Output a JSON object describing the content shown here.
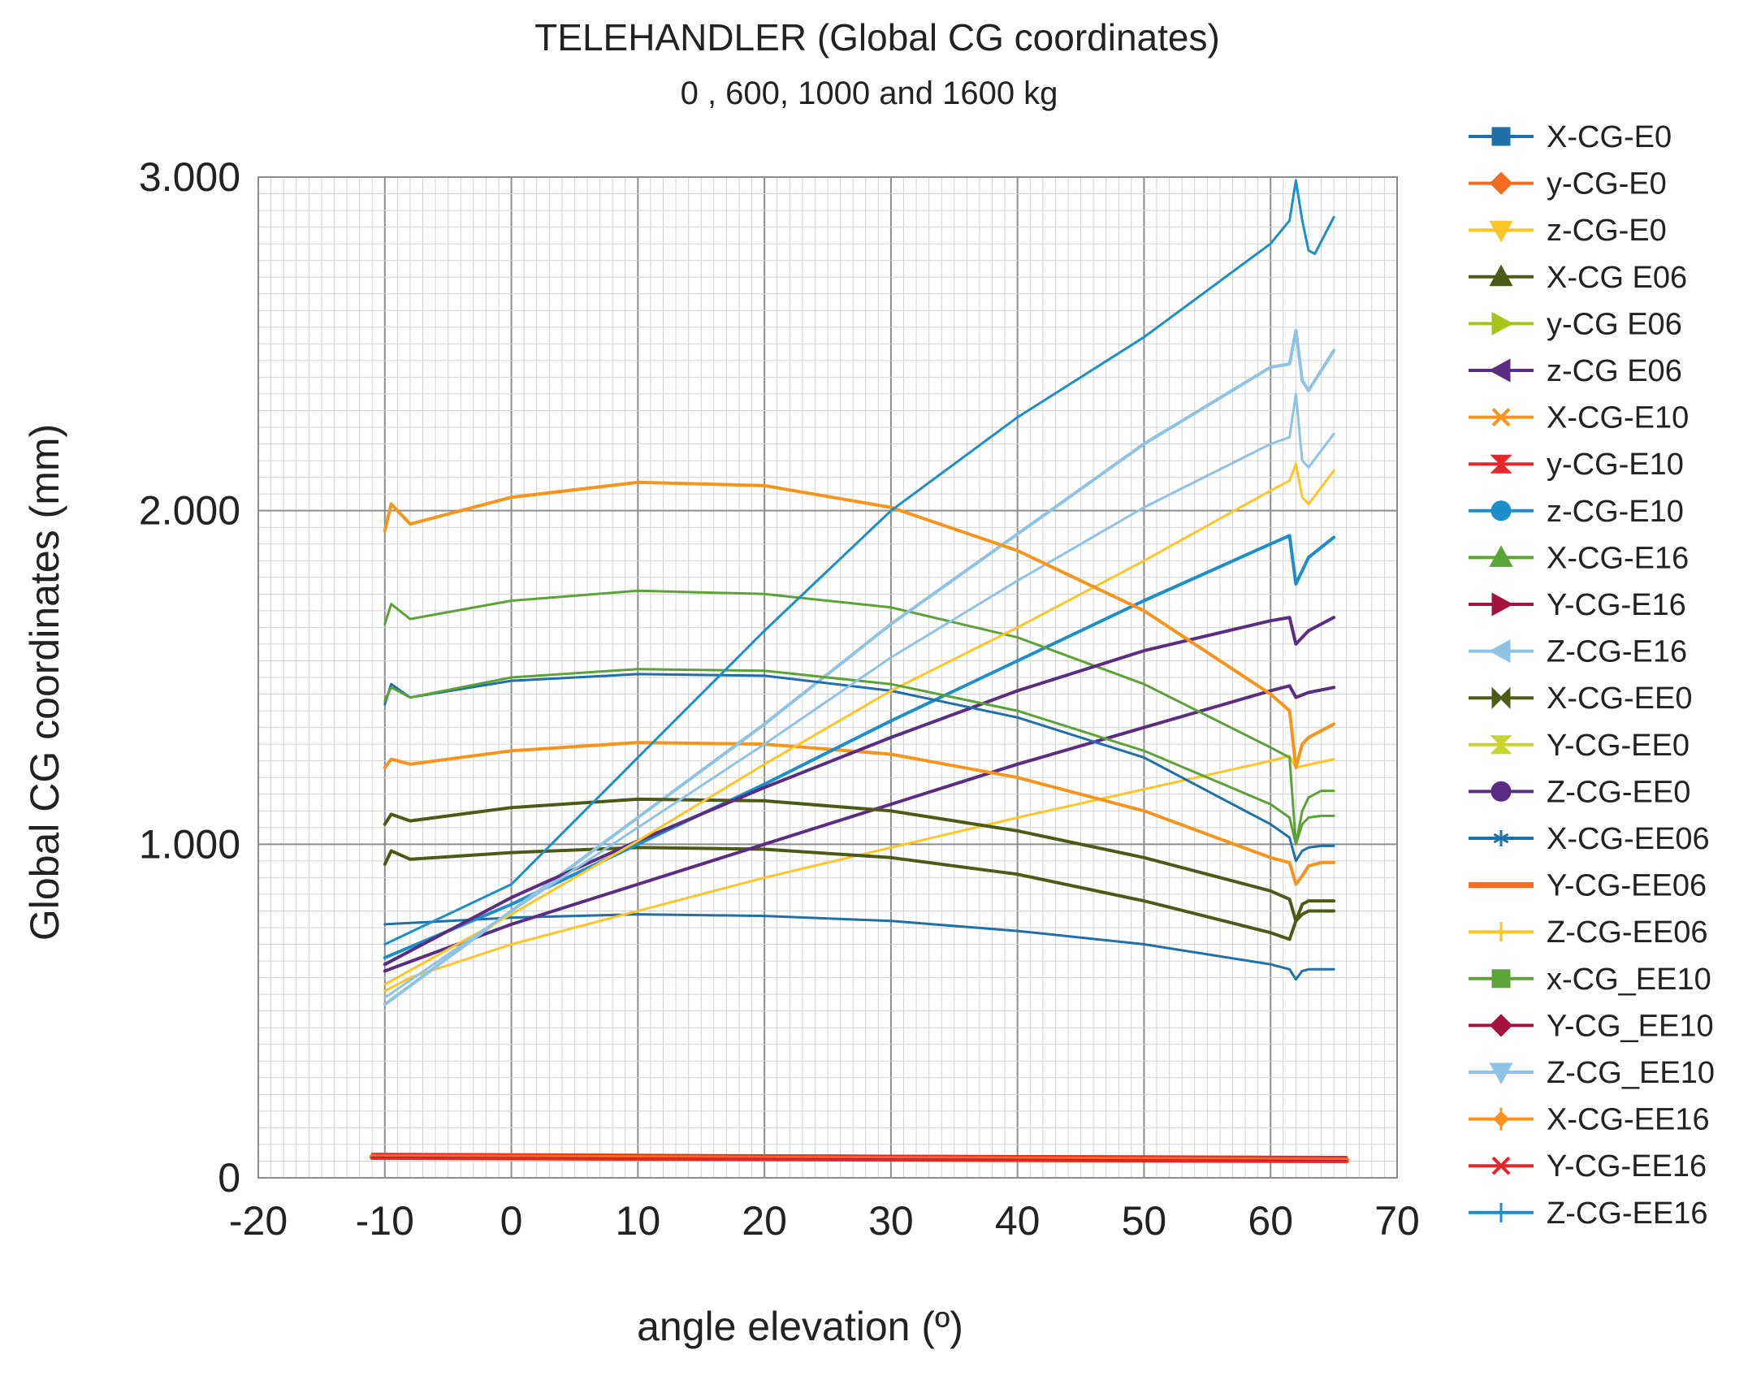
{
  "chart_data": {
    "type": "line",
    "title": "TELEHANDLER (Global CG coordinates)",
    "subtitle": "0 , 600, 1000 and 1600 kg",
    "xlabel": "angle elevation (º)",
    "ylabel": "Global CG coordinates (mm)",
    "xlim": [
      -20,
      70
    ],
    "ylim": [
      0,
      3000
    ],
    "x_ticks": [
      "-20",
      "-10",
      "0",
      "10",
      "20",
      "30",
      "40",
      "50",
      "60",
      "70"
    ],
    "y_ticks": [
      "0",
      "1.000",
      "2.000",
      "3.000"
    ],
    "grid": true,
    "legend_position": "right",
    "series": [
      {
        "name": "X-CG-E0",
        "color": "#1f6fa8",
        "marker": "square",
        "width": 3,
        "points": [
          [
            -10,
            760
          ],
          [
            0,
            780
          ],
          [
            10,
            790
          ],
          [
            20,
            785
          ],
          [
            30,
            770
          ],
          [
            40,
            740
          ],
          [
            50,
            700
          ],
          [
            60,
            640
          ],
          [
            61.5,
            625
          ],
          [
            62,
            595
          ],
          [
            62.5,
            620
          ],
          [
            63,
            625
          ],
          [
            65,
            625
          ]
        ]
      },
      {
        "name": "y-CG-E0",
        "color": "#f26b21",
        "marker": "diamond",
        "width": 3,
        "points": [
          [
            -11,
            72
          ],
          [
            66,
            60
          ]
        ]
      },
      {
        "name": "z-CG-E0",
        "color": "#ffc425",
        "marker": "triangle-down",
        "width": 3,
        "points": [
          [
            -10,
            560
          ],
          [
            -8,
            600
          ],
          [
            0,
            700
          ],
          [
            20,
            900
          ],
          [
            40,
            1080
          ],
          [
            60,
            1250
          ],
          [
            61.5,
            1265
          ],
          [
            62,
            1230
          ],
          [
            65,
            1255
          ]
        ]
      },
      {
        "name": "X-CG E06",
        "color": "#4b5b16",
        "marker": "triangle-up",
        "width": 4,
        "points": [
          [
            -10,
            940
          ],
          [
            -9.5,
            980
          ],
          [
            -8,
            955
          ],
          [
            0,
            975
          ],
          [
            10,
            990
          ],
          [
            20,
            985
          ],
          [
            30,
            960
          ],
          [
            40,
            910
          ],
          [
            50,
            830
          ],
          [
            60,
            735
          ],
          [
            61.5,
            715
          ],
          [
            62,
            770
          ],
          [
            62.5,
            790
          ],
          [
            63,
            800
          ],
          [
            64,
            800
          ],
          [
            65,
            800
          ]
        ]
      },
      {
        "name": "y-CG E06",
        "color": "#a8c418",
        "marker": "triangle-right",
        "width": 3,
        "points": [
          [
            -11,
            68
          ],
          [
            66,
            58
          ]
        ]
      },
      {
        "name": "z-CG E06",
        "color": "#5a2d82",
        "marker": "triangle-left",
        "width": 4,
        "points": [
          [
            -10,
            620
          ],
          [
            0,
            760
          ],
          [
            10,
            880
          ],
          [
            20,
            1000
          ],
          [
            30,
            1120
          ],
          [
            40,
            1240
          ],
          [
            50,
            1350
          ],
          [
            60,
            1460
          ],
          [
            61.5,
            1475
          ],
          [
            62,
            1440
          ],
          [
            63,
            1455
          ],
          [
            65,
            1470
          ]
        ]
      },
      {
        "name": "X-CG-E10",
        "color": "#f7941d",
        "marker": "x-cross",
        "width": 4,
        "points": [
          [
            -10,
            1230
          ],
          [
            -9.5,
            1255
          ],
          [
            -8,
            1240
          ],
          [
            0,
            1280
          ],
          [
            10,
            1305
          ],
          [
            20,
            1300
          ],
          [
            30,
            1270
          ],
          [
            40,
            1200
          ],
          [
            50,
            1100
          ],
          [
            60,
            960
          ],
          [
            61.5,
            945
          ],
          [
            62,
            880
          ],
          [
            62.5,
            905
          ],
          [
            63,
            935
          ],
          [
            64,
            945
          ],
          [
            65,
            945
          ]
        ]
      },
      {
        "name": "y-CG-E10",
        "color": "#e8262a",
        "marker": "hourglass",
        "width": 3,
        "points": [
          [
            -11,
            70
          ],
          [
            66,
            62
          ]
        ]
      },
      {
        "name": "z-CG-E10",
        "color": "#1b8fc9",
        "marker": "circle",
        "width": 4,
        "points": [
          [
            -10,
            660
          ],
          [
            0,
            820
          ],
          [
            10,
            1000
          ],
          [
            20,
            1180
          ],
          [
            30,
            1370
          ],
          [
            40,
            1550
          ],
          [
            50,
            1730
          ],
          [
            60,
            1900
          ],
          [
            61.5,
            1925
          ],
          [
            62,
            1780
          ],
          [
            63,
            1860
          ],
          [
            65,
            1920
          ]
        ]
      },
      {
        "name": "X-CG-E16",
        "color": "#5ba336",
        "marker": "triangle-up",
        "width": 3,
        "points": [
          [
            -10,
            1660
          ],
          [
            -9.5,
            1720
          ],
          [
            -8,
            1675
          ],
          [
            0,
            1730
          ],
          [
            10,
            1760
          ],
          [
            20,
            1750
          ],
          [
            30,
            1710
          ],
          [
            40,
            1620
          ],
          [
            50,
            1480
          ],
          [
            60,
            1290
          ],
          [
            61.5,
            1260
          ],
          [
            62,
            1000
          ],
          [
            62.5,
            1100
          ],
          [
            63,
            1140
          ],
          [
            64,
            1160
          ],
          [
            65,
            1160
          ]
        ]
      },
      {
        "name": "Y-CG-E16",
        "color": "#a4123f",
        "marker": "triangle-right",
        "width": 3,
        "points": [
          [
            -11,
            66
          ],
          [
            66,
            56
          ]
        ]
      },
      {
        "name": "Z-CG-E16",
        "color": "#8ec3e6",
        "marker": "triangle-left",
        "width": 4,
        "points": [
          [
            -10,
            520
          ],
          [
            0,
            800
          ],
          [
            10,
            1080
          ],
          [
            20,
            1360
          ],
          [
            30,
            1660
          ],
          [
            40,
            1930
          ],
          [
            50,
            2200
          ],
          [
            60,
            2430
          ],
          [
            61.5,
            2440
          ],
          [
            62,
            2540
          ],
          [
            62.5,
            2390
          ],
          [
            63,
            2360
          ],
          [
            65,
            2480
          ]
        ]
      },
      {
        "name": "X-CG-EE0",
        "color": "#4b5b16",
        "marker": "bowtie",
        "width": 4,
        "points": [
          [
            -10,
            1060
          ],
          [
            -9.5,
            1090
          ],
          [
            -8,
            1070
          ],
          [
            0,
            1110
          ],
          [
            10,
            1135
          ],
          [
            20,
            1130
          ],
          [
            30,
            1100
          ],
          [
            40,
            1040
          ],
          [
            50,
            960
          ],
          [
            60,
            860
          ],
          [
            61.5,
            835
          ],
          [
            62,
            770
          ],
          [
            62.5,
            820
          ],
          [
            63,
            830
          ],
          [
            64,
            830
          ],
          [
            65,
            830
          ]
        ]
      },
      {
        "name": "Y-CG-EE0",
        "color": "#c8d42e",
        "marker": "hourglass",
        "width": 3,
        "points": [
          [
            -11,
            64
          ],
          [
            66,
            54
          ]
        ]
      },
      {
        "name": "Z-CG-EE0",
        "color": "#5a2d82",
        "marker": "circle",
        "width": 4,
        "points": [
          [
            -10,
            640
          ],
          [
            0,
            840
          ],
          [
            10,
            1010
          ],
          [
            20,
            1170
          ],
          [
            30,
            1320
          ],
          [
            40,
            1460
          ],
          [
            50,
            1580
          ],
          [
            60,
            1670
          ],
          [
            61.5,
            1680
          ],
          [
            62,
            1600
          ],
          [
            63,
            1640
          ],
          [
            65,
            1680
          ]
        ]
      },
      {
        "name": "X-CG-EE06",
        "color": "#1f6fa8",
        "marker": "asterisk",
        "width": 3,
        "points": [
          [
            -10,
            1420
          ],
          [
            -9.5,
            1480
          ],
          [
            -8,
            1440
          ],
          [
            0,
            1490
          ],
          [
            10,
            1510
          ],
          [
            20,
            1505
          ],
          [
            30,
            1460
          ],
          [
            40,
            1380
          ],
          [
            50,
            1260
          ],
          [
            60,
            1060
          ],
          [
            61.5,
            1020
          ],
          [
            62,
            950
          ],
          [
            62.5,
            980
          ],
          [
            63,
            990
          ],
          [
            64,
            995
          ],
          [
            65,
            995
          ]
        ]
      },
      {
        "name": "Y-CG-EE06",
        "color": "#f26b21",
        "marker": "dash",
        "width": 7,
        "points": [
          [
            -11,
            62
          ],
          [
            66,
            52
          ]
        ]
      },
      {
        "name": "Z-CG-EE06",
        "color": "#ffc425",
        "marker": "plus",
        "width": 3,
        "points": [
          [
            -10,
            580
          ],
          [
            0,
            790
          ],
          [
            10,
            1010
          ],
          [
            20,
            1240
          ],
          [
            30,
            1460
          ],
          [
            40,
            1650
          ],
          [
            50,
            1850
          ],
          [
            60,
            2060
          ],
          [
            61.5,
            2090
          ],
          [
            62,
            2140
          ],
          [
            62.5,
            2040
          ],
          [
            63,
            2020
          ],
          [
            65,
            2120
          ]
        ]
      },
      {
        "name": "x-CG_EE10",
        "color": "#5ba336",
        "marker": "square",
        "width": 3,
        "points": [
          [
            -10,
            1430
          ],
          [
            -9.5,
            1470
          ],
          [
            -8,
            1440
          ],
          [
            0,
            1500
          ],
          [
            10,
            1525
          ],
          [
            20,
            1520
          ],
          [
            30,
            1480
          ],
          [
            40,
            1400
          ],
          [
            50,
            1280
          ],
          [
            60,
            1120
          ],
          [
            61.5,
            1080
          ],
          [
            62,
            1000
          ],
          [
            62.5,
            1060
          ],
          [
            63,
            1080
          ],
          [
            64,
            1085
          ],
          [
            65,
            1085
          ]
        ]
      },
      {
        "name": "Y-CG_EE10",
        "color": "#a4123f",
        "marker": "diamond",
        "width": 3,
        "points": [
          [
            -11,
            60
          ],
          [
            66,
            50
          ]
        ]
      },
      {
        "name": "Z-CG_EE10",
        "color": "#8ec3e6",
        "marker": "triangle-down",
        "width": 3,
        "points": [
          [
            -10,
            540
          ],
          [
            0,
            800
          ],
          [
            10,
            1050
          ],
          [
            20,
            1300
          ],
          [
            30,
            1560
          ],
          [
            40,
            1790
          ],
          [
            50,
            2010
          ],
          [
            60,
            2200
          ],
          [
            61.5,
            2220
          ],
          [
            62,
            2350
          ],
          [
            62.5,
            2150
          ],
          [
            63,
            2130
          ],
          [
            65,
            2230
          ]
        ]
      },
      {
        "name": "X-CG-EE16",
        "color": "#f7941d",
        "marker": "plus-diamond",
        "width": 4,
        "points": [
          [
            -10,
            1940
          ],
          [
            -9.5,
            2020
          ],
          [
            -8,
            1960
          ],
          [
            0,
            2040
          ],
          [
            10,
            2085
          ],
          [
            20,
            2075
          ],
          [
            30,
            2010
          ],
          [
            40,
            1880
          ],
          [
            50,
            1700
          ],
          [
            60,
            1450
          ],
          [
            61.5,
            1400
          ],
          [
            62,
            1230
          ],
          [
            62.5,
            1300
          ],
          [
            63,
            1320
          ],
          [
            64,
            1340
          ],
          [
            65,
            1360
          ]
        ]
      },
      {
        "name": "Y-CG-EE16",
        "color": "#e8262a",
        "marker": "x-cross",
        "width": 3,
        "points": [
          [
            -11,
            58
          ],
          [
            66,
            48
          ]
        ]
      },
      {
        "name": "Z-CG-EE16",
        "color": "#1b8fc9",
        "marker": "plus",
        "width": 3,
        "points": [
          [
            -10,
            700
          ],
          [
            0,
            880
          ],
          [
            10,
            1260
          ],
          [
            20,
            1640
          ],
          [
            30,
            2000
          ],
          [
            40,
            2280
          ],
          [
            50,
            2520
          ],
          [
            60,
            2800
          ],
          [
            61.5,
            2870
          ],
          [
            62,
            2990
          ],
          [
            62.5,
            2870
          ],
          [
            63,
            2780
          ],
          [
            63.5,
            2770
          ],
          [
            65,
            2880
          ]
        ]
      }
    ]
  }
}
